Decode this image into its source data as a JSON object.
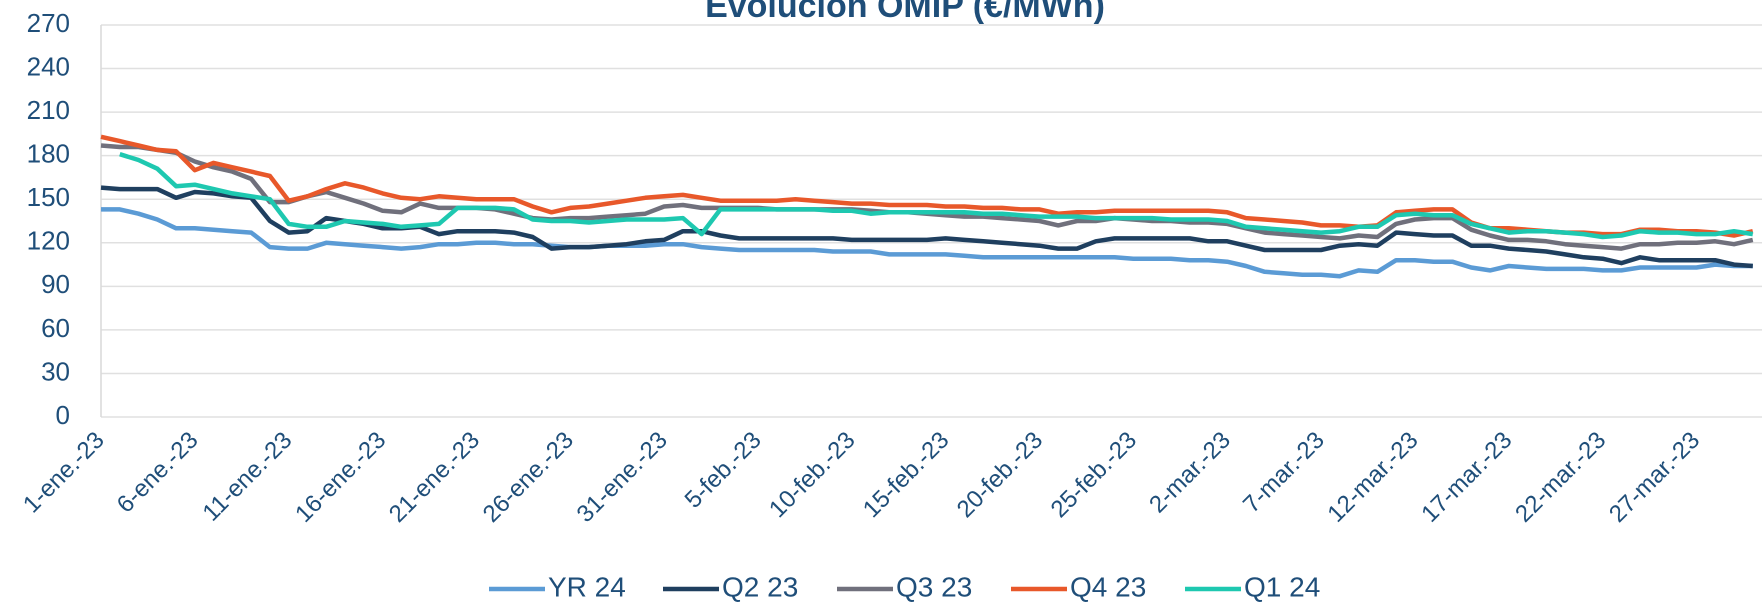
{
  "chart_data": {
    "type": "line",
    "title": "Evolución OMIP  (€/MWh)",
    "categories": [
      "1-ene.-23",
      null,
      null,
      null,
      null,
      "6-ene.-23",
      null,
      null,
      null,
      null,
      "11-ene.-23",
      null,
      null,
      null,
      null,
      "16-ene.-23",
      null,
      null,
      null,
      null,
      "21-ene.-23",
      null,
      null,
      null,
      null,
      "26-ene.-23",
      null,
      null,
      null,
      null,
      "31-ene.-23",
      null,
      null,
      null,
      null,
      "5-feb.-23",
      null,
      null,
      null,
      null,
      "10-feb.-23",
      null,
      null,
      null,
      null,
      "15-feb.-23",
      null,
      null,
      null,
      null,
      "20-feb.-23",
      null,
      null,
      null,
      null,
      "25-feb.-23",
      null,
      null,
      null,
      null,
      "2-mar.-23",
      null,
      null,
      null,
      null,
      "7-mar.-23",
      null,
      null,
      null,
      null,
      "12-mar.-23",
      null,
      null,
      null,
      null,
      "17-mar.-23",
      null,
      null,
      null,
      null,
      "22-mar.-23",
      null,
      null,
      null,
      null,
      "27-mar.-23",
      null,
      null,
      null
    ],
    "series": [
      {
        "name": "YR 24",
        "color": "#5b9bd5",
        "values": [
          143,
          143,
          140,
          136,
          130,
          130,
          129,
          128,
          127,
          117,
          116,
          116,
          120,
          119,
          118,
          117,
          116,
          117,
          119,
          119,
          120,
          120,
          119,
          119,
          118,
          117,
          117,
          118,
          118,
          118,
          119,
          119,
          117,
          116,
          115,
          115,
          115,
          115,
          115,
          114,
          114,
          114,
          112,
          112,
          112,
          112,
          111,
          110,
          110,
          110,
          110,
          110,
          110,
          110,
          110,
          109,
          109,
          109,
          108,
          108,
          107,
          104,
          100,
          99,
          98,
          98,
          97,
          101,
          100,
          108,
          108,
          107,
          107,
          103,
          101,
          104,
          103,
          102,
          102,
          102,
          101,
          101,
          103,
          103,
          103,
          103,
          105,
          104,
          104
        ]
      },
      {
        "name": "Q2 23",
        "color": "#1f3f5f",
        "values": [
          158,
          157,
          157,
          157,
          151,
          155,
          154,
          152,
          151,
          135,
          127,
          128,
          137,
          135,
          133,
          130,
          130,
          131,
          126,
          128,
          128,
          128,
          127,
          124,
          116,
          117,
          117,
          118,
          119,
          121,
          122,
          128,
          128,
          125,
          123,
          123,
          123,
          123,
          123,
          123,
          122,
          122,
          122,
          122,
          122,
          123,
          122,
          121,
          120,
          119,
          118,
          116,
          116,
          121,
          123,
          123,
          123,
          123,
          123,
          121,
          121,
          118,
          115,
          115,
          115,
          115,
          118,
          119,
          118,
          127,
          126,
          125,
          125,
          118,
          118,
          116,
          115,
          114,
          112,
          110,
          109,
          106,
          110,
          108,
          108,
          108,
          108,
          105,
          104
        ]
      },
      {
        "name": "Q3 23",
        "color": "#70707c",
        "values": [
          187,
          186,
          186,
          184,
          182,
          176,
          172,
          169,
          164,
          148,
          148,
          152,
          155,
          151,
          147,
          142,
          141,
          147,
          144,
          144,
          144,
          143,
          140,
          137,
          136,
          137,
          137,
          138,
          139,
          140,
          145,
          146,
          144,
          144,
          144,
          144,
          143,
          143,
          143,
          143,
          143,
          142,
          141,
          141,
          140,
          139,
          138,
          138,
          137,
          136,
          135,
          132,
          135,
          135,
          137,
          136,
          135,
          135,
          134,
          134,
          133,
          130,
          127,
          126,
          125,
          124,
          123,
          125,
          124,
          133,
          136,
          137,
          137,
          129,
          125,
          122,
          122,
          121,
          119,
          118,
          117,
          116,
          119,
          119,
          120,
          120,
          121,
          119,
          122
        ]
      },
      {
        "name": "Q4 23",
        "color": "#e8582a",
        "values": [
          193,
          190,
          187,
          184,
          183,
          170,
          175,
          172,
          169,
          166,
          149,
          152,
          157,
          161,
          158,
          154,
          151,
          150,
          152,
          151,
          150,
          150,
          150,
          145,
          141,
          144,
          145,
          147,
          149,
          151,
          152,
          153,
          151,
          149,
          149,
          149,
          149,
          150,
          149,
          148,
          147,
          147,
          146,
          146,
          146,
          145,
          145,
          144,
          144,
          143,
          143,
          140,
          141,
          141,
          142,
          142,
          142,
          142,
          142,
          142,
          141,
          137,
          136,
          135,
          134,
          132,
          132,
          131,
          132,
          141,
          142,
          143,
          143,
          134,
          130,
          130,
          129,
          128,
          127,
          127,
          126,
          126,
          129,
          129,
          128,
          128,
          127,
          125,
          128
        ]
      },
      {
        "name": "Q1 24",
        "color": "#1ec8b0",
        "values": [
          null,
          181,
          177,
          171,
          159,
          160,
          157,
          154,
          152,
          150,
          133,
          131,
          131,
          135,
          134,
          133,
          131,
          132,
          133,
          144,
          144,
          144,
          143,
          136,
          135,
          135,
          134,
          135,
          136,
          136,
          136,
          137,
          126,
          143,
          143,
          143,
          143,
          143,
          143,
          142,
          142,
          140,
          141,
          141,
          141,
          141,
          141,
          140,
          140,
          139,
          138,
          138,
          138,
          137,
          137,
          137,
          137,
          136,
          136,
          136,
          135,
          131,
          130,
          129,
          128,
          127,
          128,
          131,
          131,
          139,
          140,
          139,
          139,
          133,
          130,
          127,
          128,
          128,
          127,
          126,
          124,
          125,
          128,
          127,
          127,
          126,
          126,
          128,
          126
        ]
      }
    ],
    "ylim": [
      0,
      270
    ],
    "yticks": [
      0,
      30,
      60,
      90,
      120,
      150,
      180,
      210,
      240,
      270
    ],
    "grid": true,
    "legend": "bottom"
  }
}
